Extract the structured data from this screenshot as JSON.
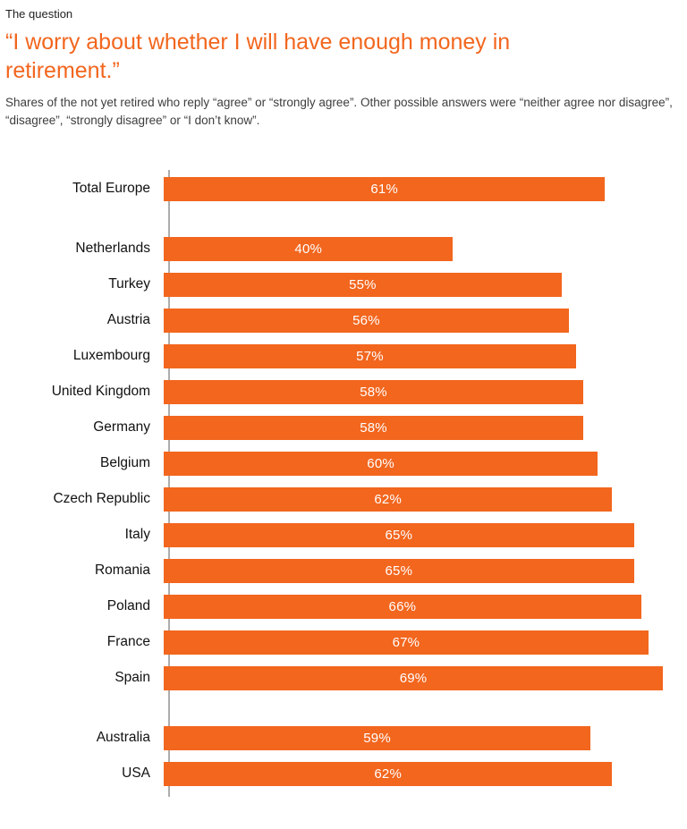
{
  "header": {
    "eyebrow": "The question",
    "title": "“I worry about whether I will have enough money in retirement.”",
    "subtitle": "Shares of the not yet retired who reply “agree” or “strongly agree”. Other possible answers were “neither agree nor disagree”, “disagree”, “strongly disagree” or “I don’t know”."
  },
  "colors": {
    "accent": "#F2661E",
    "bar": "#F2661E",
    "text_dark": "#1F1F1F",
    "text_body": "#3D3D3D",
    "axis": "#ADADAD",
    "bar_value_text": "#FFFFFF"
  },
  "chart_data": {
    "type": "bar",
    "orientation": "horizontal",
    "unit": "%",
    "axis_max": 69,
    "xlim": [
      0,
      69
    ],
    "grid": false,
    "legend": false,
    "value_label_position": "center",
    "categories": [
      "Total Europe",
      "Netherlands",
      "Turkey",
      "Austria",
      "Luxembourg",
      "United Kingdom",
      "Germany",
      "Belgium",
      "Czech Republic",
      "Italy",
      "Romania",
      "Poland",
      "France",
      "Spain",
      "Australia",
      "USA"
    ],
    "values": [
      61,
      40,
      55,
      56,
      57,
      58,
      58,
      60,
      62,
      65,
      65,
      66,
      67,
      69,
      59,
      62
    ],
    "groups": [
      {
        "name": "total",
        "rows": [
          {
            "label": "Total Europe",
            "value": 61
          }
        ]
      },
      {
        "name": "european-countries",
        "rows": [
          {
            "label": "Netherlands",
            "value": 40
          },
          {
            "label": "Turkey",
            "value": 55
          },
          {
            "label": "Austria",
            "value": 56
          },
          {
            "label": "Luxembourg",
            "value": 57
          },
          {
            "label": "United Kingdom",
            "value": 58
          },
          {
            "label": "Germany",
            "value": 58
          },
          {
            "label": "Belgium",
            "value": 60
          },
          {
            "label": "Czech Republic",
            "value": 62
          },
          {
            "label": "Italy",
            "value": 65
          },
          {
            "label": "Romania",
            "value": 65
          },
          {
            "label": "Poland",
            "value": 66
          },
          {
            "label": "France",
            "value": 67
          },
          {
            "label": "Spain",
            "value": 69
          }
        ]
      },
      {
        "name": "non-european-countries",
        "rows": [
          {
            "label": "Australia",
            "value": 59
          },
          {
            "label": "USA",
            "value": 62
          }
        ]
      }
    ]
  }
}
